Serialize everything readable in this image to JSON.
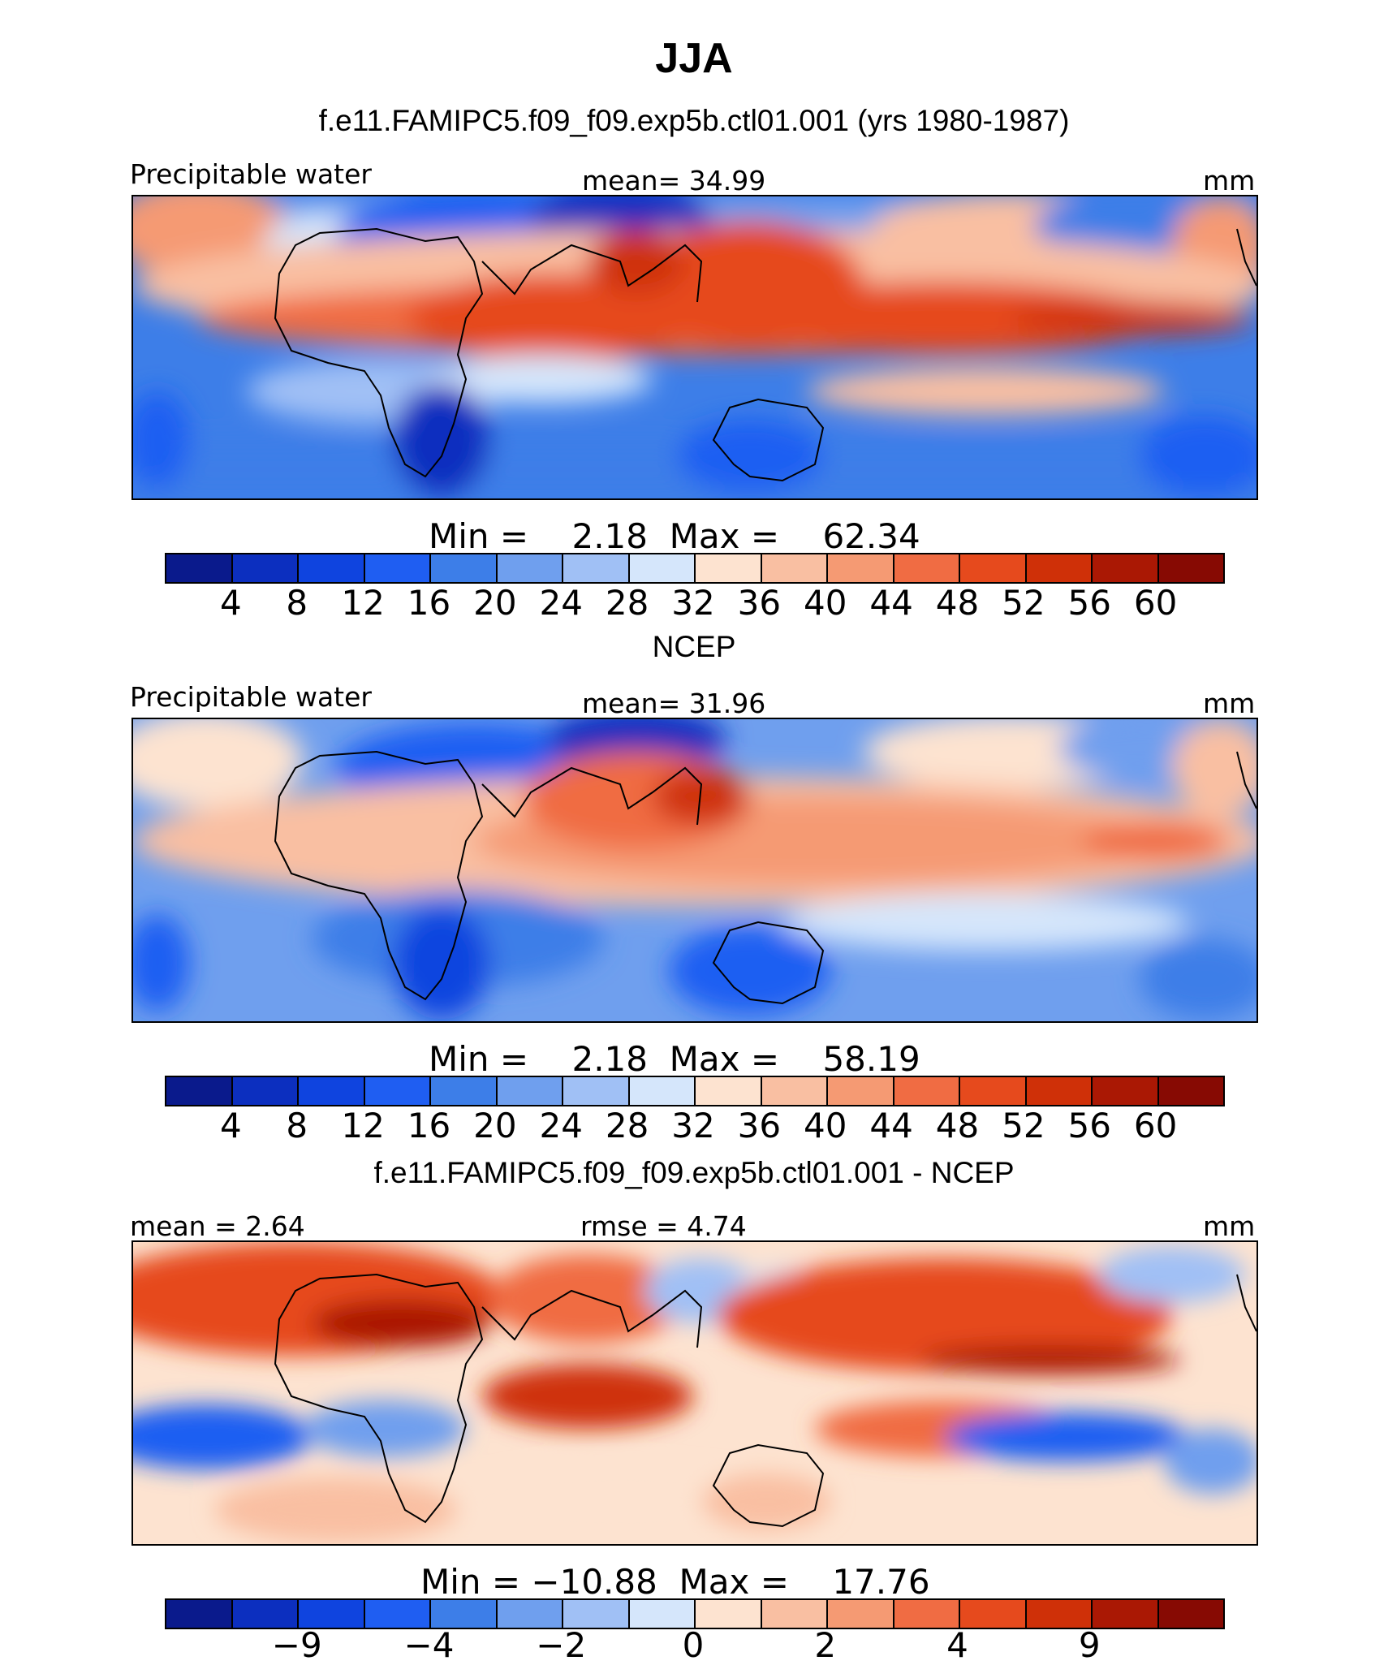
{
  "title": "JJA",
  "subtitle": "f.e11.FAMIPC5.f09_f09.exp5b.ctl01.001 (yrs 1980-1987)",
  "colors": [
    "#0a1a8c",
    "#0c2fbf",
    "#0f44df",
    "#1f5ef2",
    "#3d7ee8",
    "#6f9fee",
    "#a0c0f5",
    "#d5e6fb",
    "#fde3d0",
    "#f9bfa2",
    "#f59a73",
    "#f06c43",
    "#e64a1d",
    "#cf3008",
    "#aa1804",
    "#870a03"
  ],
  "panels": [
    {
      "name": "model",
      "title": "",
      "label_left": "Precipitable water",
      "label_center": "mean=  34.99",
      "label_right": "mm",
      "minmax": "Min =    2.18  Max =    62.34",
      "ticks": [
        "4",
        "8",
        "12",
        "16",
        "20",
        "24",
        "28",
        "32",
        "36",
        "40",
        "44",
        "48",
        "52",
        "56",
        "60"
      ]
    },
    {
      "name": "ncep",
      "title": "NCEP",
      "label_left": "Precipitable water",
      "label_center": "mean=  31.96",
      "label_right": "mm",
      "minmax": "Min =    2.18  Max =    58.19",
      "ticks": [
        "4",
        "8",
        "12",
        "16",
        "20",
        "24",
        "28",
        "32",
        "36",
        "40",
        "44",
        "48",
        "52",
        "56",
        "60"
      ]
    },
    {
      "name": "diff",
      "title": "f.e11.FAMIPC5.f09_f09.exp5b.ctl01.001 - NCEP",
      "label_left": "mean =    2.64",
      "label_center": "rmse =    4.74",
      "label_right": "mm",
      "minmax": "Min = −10.88  Max =    17.76",
      "ticks": [
        "−9",
        "−4",
        "−2",
        "0",
        "2",
        "4",
        "9"
      ]
    }
  ]
}
